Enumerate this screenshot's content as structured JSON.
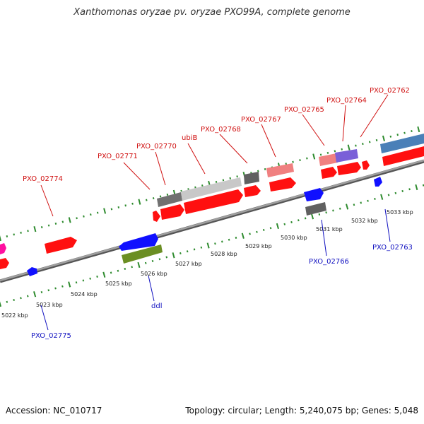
{
  "header": {
    "title": "Xanthomonas oryzae pv. oryzae PXO99A, complete genome"
  },
  "footer": {
    "accession": "Accession: NC_010717",
    "topology": "Topology: circular; Length: 5,240,075 bp; Genes: 5,048"
  },
  "ruler": {
    "labels": [
      "5022 kbp",
      "5023 kbp",
      "5024 kbp",
      "5025 kbp",
      "5026 kbp",
      "5027 kbp",
      "5028 kbp",
      "5029 kbp",
      "5030 kbp",
      "5031 kbp",
      "5032 kbp",
      "5033 kbp"
    ]
  },
  "genes_top": [
    {
      "label": "PXO_02774"
    },
    {
      "label": "PXO_02771"
    },
    {
      "label": "PXO_02770"
    },
    {
      "label": "ubiB"
    },
    {
      "label": "PXO_02768"
    },
    {
      "label": "PXO_02767"
    },
    {
      "label": "PXO_02765"
    },
    {
      "label": "PXO_02764"
    },
    {
      "label": "PXO_02762"
    }
  ],
  "genes_bottom": [
    {
      "label": "PXO_02775"
    },
    {
      "label": "ddl"
    },
    {
      "label": "PXO_02766"
    },
    {
      "label": "PXO_02763"
    }
  ],
  "colors": {
    "forward_label": "#d01010",
    "reverse_label": "#1010c0",
    "backbone": "#8a8a8a",
    "tick": "#2e8b2e",
    "cds_red": "#ff1010",
    "cds_blue": "#1010ff",
    "gray": "#707070",
    "light_gray": "#c8c8c8",
    "pink": "#f08080",
    "purple": "#7a60d8",
    "steel_blue": "#4a80b8",
    "olive": "#6b8e23",
    "magenta": "#ff10a0"
  }
}
